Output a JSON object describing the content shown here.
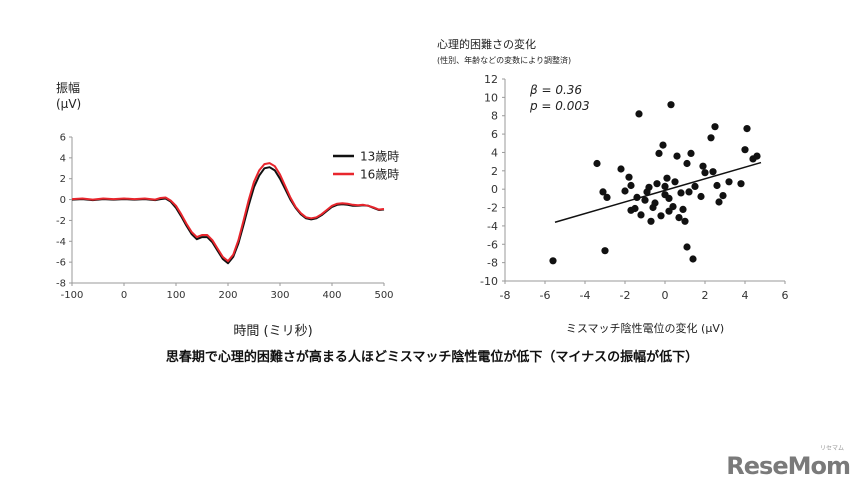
{
  "caption": "思春期で心理的困難さが高まる人ほどミスマッチ陰性電位が低下（マイナスの振幅が低下）",
  "logo": {
    "text": "ReseMom",
    "sub": "リセマム"
  },
  "chart_data": [
    {
      "type": "line",
      "ylabel_line1": "振幅",
      "ylabel_line2": "(μV)",
      "xlabel": "時間 (ミリ秒)",
      "xlim": [
        -100,
        500
      ],
      "ylim": [
        -8,
        6
      ],
      "xticks": [
        "-100",
        "0",
        "100",
        "200",
        "300",
        "400",
        "500"
      ],
      "yticks": [
        "6",
        "4",
        "2",
        "0",
        "-2",
        "-4",
        "-6",
        "-8"
      ],
      "legend_position": "top-right",
      "series": [
        {
          "name": "13歳時",
          "color": "#111111",
          "points": [
            [
              -100,
              0
            ],
            [
              -80,
              0.05
            ],
            [
              -60,
              -0.05
            ],
            [
              -40,
              0.05
            ],
            [
              -20,
              0
            ],
            [
              0,
              0.05
            ],
            [
              20,
              0
            ],
            [
              40,
              0.05
            ],
            [
              60,
              -0.05
            ],
            [
              70,
              0.05
            ],
            [
              80,
              0.1
            ],
            [
              90,
              -0.2
            ],
            [
              100,
              -0.8
            ],
            [
              110,
              -1.6
            ],
            [
              120,
              -2.5
            ],
            [
              130,
              -3.3
            ],
            [
              140,
              -3.8
            ],
            [
              150,
              -3.6
            ],
            [
              160,
              -3.6
            ],
            [
              170,
              -4.1
            ],
            [
              180,
              -4.9
            ],
            [
              190,
              -5.7
            ],
            [
              200,
              -6.1
            ],
            [
              210,
              -5.5
            ],
            [
              220,
              -4.2
            ],
            [
              230,
              -2.4
            ],
            [
              240,
              -0.5
            ],
            [
              250,
              1.2
            ],
            [
              260,
              2.3
            ],
            [
              270,
              3.0
            ],
            [
              280,
              3.1
            ],
            [
              290,
              2.8
            ],
            [
              300,
              2.0
            ],
            [
              310,
              1.0
            ],
            [
              320,
              0.0
            ],
            [
              330,
              -0.8
            ],
            [
              340,
              -1.4
            ],
            [
              350,
              -1.8
            ],
            [
              360,
              -1.9
            ],
            [
              370,
              -1.8
            ],
            [
              380,
              -1.5
            ],
            [
              390,
              -1.1
            ],
            [
              400,
              -0.7
            ],
            [
              410,
              -0.5
            ],
            [
              420,
              -0.45
            ],
            [
              430,
              -0.5
            ],
            [
              440,
              -0.6
            ],
            [
              450,
              -0.6
            ],
            [
              460,
              -0.55
            ],
            [
              470,
              -0.6
            ],
            [
              480,
              -0.8
            ],
            [
              490,
              -1.0
            ],
            [
              500,
              -0.95
            ]
          ]
        },
        {
          "name": "16歳時",
          "color": "#e8262d",
          "points": [
            [
              -100,
              0.05
            ],
            [
              -80,
              0.1
            ],
            [
              -60,
              0
            ],
            [
              -40,
              0.1
            ],
            [
              -20,
              0.05
            ],
            [
              0,
              0.1
            ],
            [
              20,
              0.05
            ],
            [
              40,
              0.1
            ],
            [
              60,
              0
            ],
            [
              70,
              0.15
            ],
            [
              80,
              0.2
            ],
            [
              90,
              -0.1
            ],
            [
              100,
              -0.6
            ],
            [
              110,
              -1.4
            ],
            [
              120,
              -2.3
            ],
            [
              130,
              -3.1
            ],
            [
              140,
              -3.6
            ],
            [
              150,
              -3.4
            ],
            [
              160,
              -3.4
            ],
            [
              170,
              -3.9
            ],
            [
              180,
              -4.7
            ],
            [
              190,
              -5.5
            ],
            [
              200,
              -5.9
            ],
            [
              210,
              -5.3
            ],
            [
              220,
              -3.9
            ],
            [
              230,
              -2.0
            ],
            [
              240,
              0.0
            ],
            [
              250,
              1.7
            ],
            [
              260,
              2.8
            ],
            [
              270,
              3.4
            ],
            [
              280,
              3.5
            ],
            [
              290,
              3.2
            ],
            [
              300,
              2.4
            ],
            [
              310,
              1.3
            ],
            [
              320,
              0.2
            ],
            [
              330,
              -0.7
            ],
            [
              340,
              -1.3
            ],
            [
              350,
              -1.7
            ],
            [
              360,
              -1.8
            ],
            [
              370,
              -1.7
            ],
            [
              380,
              -1.4
            ],
            [
              390,
              -1.0
            ],
            [
              400,
              -0.6
            ],
            [
              410,
              -0.4
            ],
            [
              420,
              -0.35
            ],
            [
              430,
              -0.4
            ],
            [
              440,
              -0.5
            ],
            [
              450,
              -0.55
            ],
            [
              460,
              -0.5
            ],
            [
              470,
              -0.6
            ],
            [
              480,
              -0.75
            ],
            [
              490,
              -0.95
            ],
            [
              500,
              -0.9
            ]
          ]
        }
      ]
    },
    {
      "type": "scatter",
      "title": "心理的困難さの変化",
      "subtitle": "(性別、年齢などの変数により調整済)",
      "xlabel": "ミスマッチ陰性電位の変化 (μV)",
      "xlim": [
        -8,
        6
      ],
      "ylim": [
        -10,
        12
      ],
      "xticks": [
        "-8",
        "-6",
        "-4",
        "-2",
        "0",
        "2",
        "4",
        "6"
      ],
      "yticks": [
        "12",
        "10",
        "8",
        "6",
        "4",
        "2",
        "0",
        "-2",
        "-4",
        "-6",
        "-8",
        "-10"
      ],
      "annotation_beta": "β = 0.36",
      "annotation_p": "p = 0.003",
      "regression": {
        "x1": -5.5,
        "y1": -3.6,
        "x2": 4.8,
        "y2": 2.9
      },
      "points": [
        [
          -5.6,
          -7.8
        ],
        [
          -3.4,
          2.8
        ],
        [
          -3.0,
          -6.7
        ],
        [
          -3.1,
          -0.3
        ],
        [
          -2.9,
          -0.9
        ],
        [
          -2.2,
          2.2
        ],
        [
          -2.0,
          -0.2
        ],
        [
          -1.8,
          1.3
        ],
        [
          -1.7,
          -2.3
        ],
        [
          -1.7,
          0.4
        ],
        [
          -1.5,
          -2.1
        ],
        [
          -1.4,
          -0.9
        ],
        [
          -1.3,
          8.2
        ],
        [
          -1.2,
          -2.8
        ],
        [
          -1.0,
          -1.2
        ],
        [
          -0.9,
          -0.3
        ],
        [
          -0.8,
          0.2
        ],
        [
          -0.7,
          -3.5
        ],
        [
          -0.6,
          -2.0
        ],
        [
          -0.5,
          -1.5
        ],
        [
          -0.4,
          0.6
        ],
        [
          -0.3,
          3.9
        ],
        [
          -0.2,
          -2.9
        ],
        [
          -0.1,
          4.8
        ],
        [
          0.0,
          -0.6
        ],
        [
          0.0,
          0.3
        ],
        [
          0.1,
          1.2
        ],
        [
          0.2,
          -2.4
        ],
        [
          0.2,
          -1.0
        ],
        [
          0.3,
          9.2
        ],
        [
          0.4,
          -1.9
        ],
        [
          0.5,
          0.8
        ],
        [
          0.6,
          3.6
        ],
        [
          0.7,
          -3.1
        ],
        [
          0.8,
          -0.4
        ],
        [
          0.9,
          -2.2
        ],
        [
          1.0,
          -3.5
        ],
        [
          1.1,
          2.8
        ],
        [
          1.1,
          -6.3
        ],
        [
          1.2,
          -0.3
        ],
        [
          1.3,
          3.9
        ],
        [
          1.4,
          -7.6
        ],
        [
          1.5,
          0.3
        ],
        [
          1.8,
          -0.8
        ],
        [
          1.9,
          2.5
        ],
        [
          2.0,
          1.8
        ],
        [
          2.3,
          5.6
        ],
        [
          2.4,
          1.9
        ],
        [
          2.5,
          6.8
        ],
        [
          2.6,
          0.4
        ],
        [
          2.7,
          -1.4
        ],
        [
          2.9,
          -0.7
        ],
        [
          3.2,
          0.8
        ],
        [
          3.8,
          0.6
        ],
        [
          4.0,
          4.3
        ],
        [
          4.1,
          6.6
        ],
        [
          4.4,
          3.3
        ],
        [
          4.6,
          3.6
        ]
      ]
    }
  ]
}
